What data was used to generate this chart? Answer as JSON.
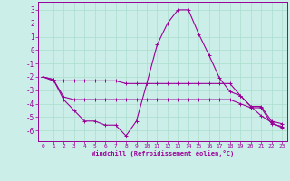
{
  "xlabel": "Windchill (Refroidissement éolien,°C)",
  "background_color": "#cceee8",
  "grid_color": "#aaddcc",
  "line_color": "#990099",
  "xlim": [
    -0.5,
    23.5
  ],
  "ylim": [
    -6.8,
    3.6
  ],
  "yticks": [
    3,
    2,
    1,
    0,
    -1,
    -2,
    -3,
    -4,
    -5,
    -6
  ],
  "xticks": [
    0,
    1,
    2,
    3,
    4,
    5,
    6,
    7,
    8,
    9,
    10,
    11,
    12,
    13,
    14,
    15,
    16,
    17,
    18,
    19,
    20,
    21,
    22,
    23
  ],
  "series": [
    {
      "x": [
        0,
        1,
        2,
        3,
        4,
        5,
        6,
        7,
        8,
        9,
        10,
        11,
        12,
        13,
        14,
        15,
        16,
        17,
        18,
        19,
        20,
        21,
        22,
        23
      ],
      "y": [
        -2.0,
        -2.3,
        -2.3,
        -2.3,
        -2.3,
        -2.3,
        -2.3,
        -2.3,
        -2.5,
        -2.5,
        -2.5,
        -2.5,
        -2.5,
        -2.5,
        -2.5,
        -2.5,
        -2.5,
        -2.5,
        -2.5,
        -3.4,
        -4.2,
        -4.2,
        -5.3,
        -5.5
      ]
    },
    {
      "x": [
        0,
        1,
        2,
        3,
        4,
        5,
        6,
        7,
        8,
        9,
        10,
        11,
        12,
        13,
        14,
        15,
        16,
        17,
        18,
        19,
        20,
        21,
        22,
        23
      ],
      "y": [
        -2.0,
        -2.2,
        -3.5,
        -3.7,
        -3.7,
        -3.7,
        -3.7,
        -3.7,
        -3.7,
        -3.7,
        -3.7,
        -3.7,
        -3.7,
        -3.7,
        -3.7,
        -3.7,
        -3.7,
        -3.7,
        -3.7,
        -4.0,
        -4.3,
        -4.3,
        -5.5,
        -5.7
      ]
    },
    {
      "x": [
        0,
        1,
        2,
        3,
        4,
        5,
        6,
        7,
        8,
        9,
        10,
        11,
        12,
        13,
        14,
        15,
        16,
        17,
        18,
        19,
        20,
        21,
        22,
        23
      ],
      "y": [
        -2.0,
        -2.2,
        -3.7,
        -4.5,
        -5.3,
        -5.3,
        -5.6,
        -5.6,
        -6.4,
        -5.3,
        -2.5,
        0.4,
        2.0,
        3.0,
        3.0,
        1.2,
        -0.4,
        -2.1,
        -3.1,
        -3.4,
        -4.2,
        -4.9,
        -5.4,
        -5.8
      ]
    }
  ]
}
